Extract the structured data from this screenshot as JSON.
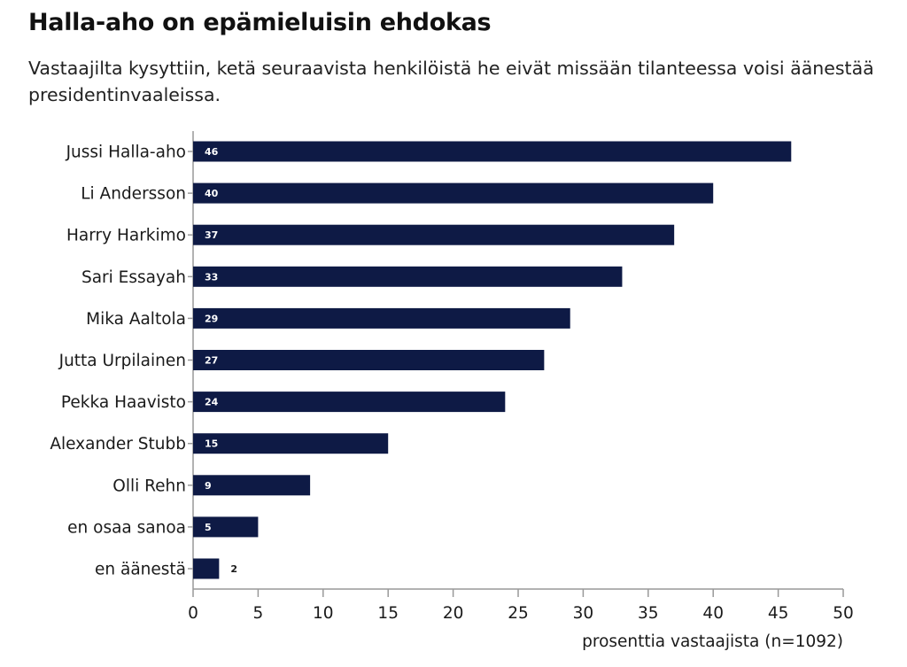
{
  "header": {
    "title": "Halla-aho on epämieluisin ehdokas",
    "subtitle": "Vastaajilta kysyttiin, ketä seuraavista henkilöistä he eivät missään tilanteessa voisi äänestää presidentinvaaleissa."
  },
  "colors": {
    "bar": "#0e1a45",
    "axis": "#999999",
    "label_inside": "#ffffff",
    "label_outside": "#1a1a1a"
  },
  "chart_data": {
    "type": "bar",
    "orientation": "horizontal",
    "title": "Halla-aho on epämieluisin ehdokas",
    "subtitle": "Vastaajilta kysyttiin, ketä seuraavista henkilöistä he eivät missään tilanteessa voisi äänestää presidentinvaaleissa.",
    "categories": [
      "Jussi Halla-aho",
      "Li Andersson",
      "Harry Harkimo",
      "Sari Essayah",
      "Mika Aaltola",
      "Jutta Urpilainen",
      "Pekka Haavisto",
      "Alexander Stubb",
      "Olli Rehn",
      "en osaa sanoa",
      "en äänestä"
    ],
    "values": [
      46,
      40,
      37,
      33,
      29,
      27,
      24,
      15,
      9,
      5,
      2
    ],
    "data_labels": [
      "46",
      "40",
      "37",
      "33",
      "29",
      "27",
      "24",
      "15",
      "9",
      "5",
      "2"
    ],
    "xlabel": "prosenttia vastaajista (n=1092)",
    "ylabel": "",
    "xlim": [
      0,
      50
    ],
    "xticks": [
      0,
      5,
      10,
      15,
      20,
      25,
      30,
      35,
      40,
      45,
      50
    ],
    "xtick_labels": [
      "0",
      "5",
      "10",
      "15",
      "20",
      "25",
      "30",
      "35",
      "40",
      "45",
      "50"
    ],
    "grid": false,
    "legend": "none"
  }
}
